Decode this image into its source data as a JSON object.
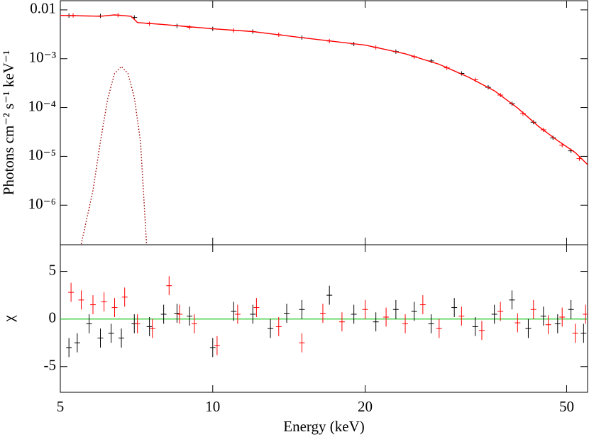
{
  "chart_data": [
    {
      "type": "line",
      "ylabel": "Photons cm⁻² s⁻¹ keV⁻¹",
      "xlog": true,
      "ylog": true,
      "xlim": [
        5,
        55
      ],
      "ylim": [
        1.55e-07,
        0.0154
      ],
      "xticks": [
        5,
        10,
        20,
        50
      ],
      "show_xtick_labels": false,
      "yticks": [
        0.01,
        {
          "value": 0.001,
          "label": "10⁻³"
        },
        {
          "value": 0.0001,
          "label": "10⁻⁴"
        },
        {
          "value": 1e-05,
          "label": "10⁻⁵"
        },
        {
          "value": 1e-06,
          "label": "10⁻⁶"
        }
      ],
      "series": [
        {
          "style": "points",
          "color": "#000000",
          "x": [
            5.2,
            6,
            7,
            8.5,
            10,
            12,
            15,
            19,
            23,
            27,
            31,
            35,
            39,
            43,
            47,
            51
          ],
          "values": [
            0.0076,
            0.0075,
            0.007,
            0.0047,
            0.0041,
            0.0036,
            0.0027,
            0.002,
            0.0014,
            0.0009,
            0.0005,
            0.00026,
            0.00012,
            5e-05,
            2.4e-05,
            1.3e-05
          ]
        },
        {
          "style": "points",
          "color": "#ff0000",
          "x": [
            5.3,
            6.5,
            7.5,
            9,
            11,
            13.5,
            17,
            21,
            25,
            29,
            33,
            37,
            41,
            45,
            49,
            53
          ],
          "values": [
            0.0077,
            0.0078,
            0.0052,
            0.0044,
            0.0038,
            0.0031,
            0.0023,
            0.0017,
            0.0011,
            0.00065,
            0.00037,
            0.00018,
            7.5e-05,
            3.5e-05,
            1.7e-05,
            9e-06
          ]
        },
        {
          "style": "line",
          "color": "#ff0000",
          "x": [
            5,
            6,
            6.4,
            6.9,
            7.1,
            8,
            10,
            12,
            15,
            20,
            24,
            28,
            32,
            36,
            40,
            44,
            48,
            52,
            55
          ],
          "values": [
            0.0077,
            0.0074,
            0.0079,
            0.0074,
            0.0055,
            0.005,
            0.0041,
            0.0036,
            0.0027,
            0.0019,
            0.00126,
            0.00077,
            0.00042,
            0.00022,
            9.8e-05,
            4.1e-05,
            2.1e-05,
            1.2e-05,
            6.8e-06
          ]
        },
        {
          "style": "dotted",
          "color": "#990000",
          "x": [
            5.5,
            5.8,
            6,
            6.2,
            6.4,
            6.6,
            6.8,
            7,
            7.2,
            7.4
          ],
          "values": [
            1.6e-07,
            2e-06,
            2e-05,
            0.00015,
            0.0005,
            0.00069,
            0.0005,
            0.00016,
            2e-05,
            1.6e-07
          ]
        }
      ]
    },
    {
      "type": "scatter",
      "ylabel": "χ",
      "xlabel": "Energy (keV)",
      "xlog": true,
      "ylog": false,
      "xlim": [
        5,
        55
      ],
      "ylim": [
        -7.7,
        7.8
      ],
      "xticks": [
        5,
        10,
        20,
        50
      ],
      "show_xtick_labels": true,
      "yticks": [
        -5,
        0,
        5
      ],
      "hline": {
        "value": 0,
        "color": "#33cc33"
      },
      "series": [
        {
          "style": "points",
          "color": "#000000",
          "error": 1,
          "x": [
            5.2,
            5.4,
            5.7,
            6,
            6.3,
            6.6,
            7,
            7.5,
            8,
            8.5,
            9,
            10,
            11,
            12,
            13,
            14,
            15,
            17,
            19,
            21,
            23,
            25,
            27,
            30,
            33,
            36,
            39,
            42,
            45,
            48,
            51,
            54
          ],
          "values": [
            -3,
            -2.5,
            -0.5,
            -2,
            -1.5,
            -2,
            -0.5,
            -0.8,
            0.5,
            0.6,
            0.3,
            -3,
            0.8,
            0.5,
            -1,
            0.6,
            1,
            2.5,
            0.5,
            -0.3,
            1,
            0.8,
            -0.5,
            1.2,
            -0.8,
            0.5,
            2,
            -1,
            0.3,
            -0.5,
            1,
            -1.5
          ]
        },
        {
          "style": "points",
          "color": "#ff0000",
          "error": 1,
          "x": [
            5.25,
            5.5,
            5.8,
            6.1,
            6.4,
            6.7,
            7.1,
            7.6,
            8.2,
            8.6,
            9.2,
            10.2,
            11.2,
            12.2,
            13.5,
            15,
            16.5,
            18,
            20,
            22,
            24,
            26,
            28,
            31,
            34,
            37,
            40,
            43,
            46,
            49,
            52,
            54.5
          ],
          "values": [
            2.8,
            2,
            1.5,
            1.8,
            1.2,
            2.3,
            -0.5,
            -1,
            3.5,
            0.5,
            -0.5,
            -2.8,
            0.5,
            1.2,
            -0.8,
            -2.5,
            0.6,
            -0.3,
            1,
            0.2,
            -0.5,
            1.5,
            -1,
            0.3,
            -1.2,
            0.8,
            -0.4,
            1,
            -0.6,
            0.2,
            -1.5,
            0.5
          ]
        }
      ]
    }
  ]
}
